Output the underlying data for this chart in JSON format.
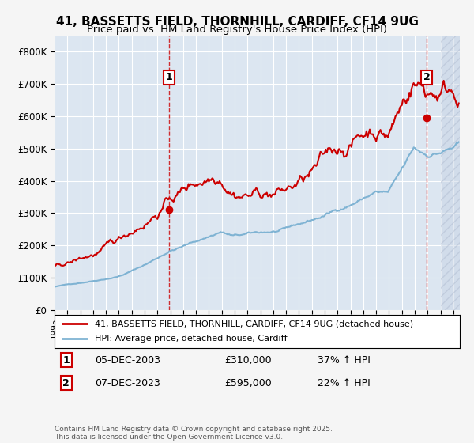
{
  "title_line1": "41, BASSETTS FIELD, THORNHILL, CARDIFF, CF14 9UG",
  "title_line2": "Price paid vs. HM Land Registry's House Price Index (HPI)",
  "title_fontsize": 11,
  "subtitle_fontsize": 9.5,
  "bg_color": "#dce6f1",
  "plot_bg_color": "#dce6f1",
  "hatch_color": "#c0c8d8",
  "red_color": "#cc0000",
  "blue_color": "#7fb3d3",
  "grid_color": "#ffffff",
  "marker1_date_x": 2003.92,
  "marker1_y": 310000,
  "marker1_label": "1",
  "marker2_date_x": 2023.92,
  "marker2_y": 595000,
  "marker2_label": "2",
  "legend_line1": "41, BASSETTS FIELD, THORNHILL, CARDIFF, CF14 9UG (detached house)",
  "legend_line2": "HPI: Average price, detached house, Cardiff",
  "annotation1": "1    05-DEC-2003         £310,000          37% ↑ HPI",
  "annotation2": "2    07-DEC-2023         £595,000          22% ↑ HPI",
  "footer": "Contains HM Land Registry data © Crown copyright and database right 2025.\nThis data is licensed under the Open Government Licence v3.0.",
  "ylim": [
    0,
    850000
  ],
  "xlim_start": 1995,
  "xlim_end": 2026.5
}
